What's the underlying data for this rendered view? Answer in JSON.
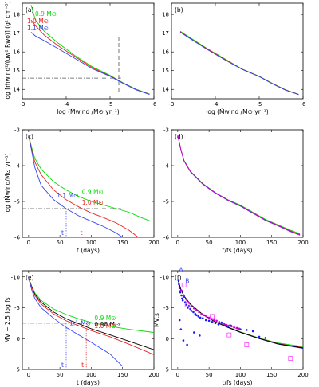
{
  "chart_data": [
    {
      "type": "line",
      "panel_label": "(a)",
      "xlabel": "log (Ṁwind /M⊙ yr⁻¹)",
      "ylabel": "log [ṁwind²/(uw² Rwo)] (g² cm⁻³)",
      "xlim": [
        -3,
        -6
      ],
      "ylim": [
        13.5,
        18.6
      ],
      "xticks": [
        -3,
        -4,
        -5,
        -6
      ],
      "yticks": [
        14,
        15,
        16,
        17,
        18
      ],
      "series": [
        {
          "name": "0.9 M⊙",
          "color": "#00dd00",
          "x": [
            -3.2,
            -3.3,
            -3.5,
            -3.8,
            -4.2,
            -4.6,
            -5.0,
            -5.3,
            -5.6,
            -5.9
          ],
          "y": [
            18.5,
            17.7,
            17.1,
            16.5,
            15.8,
            15.2,
            14.75,
            14.35,
            14.0,
            13.75
          ]
        },
        {
          "name": "1.0 M⊙",
          "color": "#ee2222",
          "x": [
            -3.2,
            -3.3,
            -3.5,
            -3.8,
            -4.2,
            -4.6,
            -5.0,
            -5.3,
            -5.6,
            -5.9
          ],
          "y": [
            17.7,
            17.4,
            16.9,
            16.35,
            15.75,
            15.15,
            14.72,
            14.33,
            13.98,
            13.74
          ]
        },
        {
          "name": "1.1 M⊙",
          "color": "#3344ee",
          "x": [
            -3.2,
            -3.3,
            -3.5,
            -3.8,
            -4.2,
            -4.6,
            -5.0,
            -5.3,
            -5.6,
            -5.9
          ],
          "y": [
            17.05,
            16.85,
            16.6,
            16.2,
            15.65,
            15.1,
            14.7,
            14.32,
            13.97,
            13.73
          ]
        }
      ],
      "annotations": {
        "vline_x": -5.2,
        "hline_y": 14.6
      }
    },
    {
      "type": "line",
      "panel_label": "(b)",
      "xlabel": "log (Ṁwind /M⊙ yr⁻¹)",
      "ylabel": "",
      "xlim": [
        -3,
        -6
      ],
      "ylim": [
        13.5,
        18.6
      ],
      "xticks": [
        -3,
        -4,
        -5,
        -6
      ],
      "yticks": [
        14,
        15,
        16,
        17,
        18
      ],
      "series": [
        {
          "color": "#00dd00",
          "x": [
            -3.2,
            -3.5,
            -3.8,
            -4.2,
            -4.6,
            -5.0,
            -5.3,
            -5.6,
            -5.9
          ],
          "y": [
            17.1,
            16.65,
            16.2,
            15.65,
            15.1,
            14.7,
            14.32,
            13.98,
            13.74
          ]
        },
        {
          "color": "#ee2222",
          "x": [
            -3.2,
            -3.5,
            -3.8,
            -4.2,
            -4.6,
            -5.0,
            -5.3,
            -5.6,
            -5.9
          ],
          "y": [
            17.08,
            16.62,
            16.18,
            15.63,
            15.09,
            14.69,
            14.31,
            13.97,
            13.73
          ]
        },
        {
          "color": "#3344ee",
          "x": [
            -3.2,
            -3.5,
            -3.8,
            -4.2,
            -4.6,
            -5.0,
            -5.3,
            -5.6,
            -5.9
          ],
          "y": [
            17.05,
            16.6,
            16.15,
            15.6,
            15.08,
            14.68,
            14.3,
            13.96,
            13.72
          ]
        }
      ]
    },
    {
      "type": "line",
      "panel_label": "(c)",
      "xlabel": "t (days)",
      "ylabel": "log (Ṁwind/M⊙ yr⁻¹)",
      "xlim": [
        -10,
        200
      ],
      "ylim": [
        -6,
        -3
      ],
      "xticks": [
        0,
        50,
        100,
        150,
        200
      ],
      "yticks": [
        -3,
        -4,
        -5,
        -6
      ],
      "series": [
        {
          "name": "0.9 M⊙",
          "color": "#00dd00",
          "x": [
            0,
            5,
            10,
            20,
            40,
            60,
            80,
            100,
            120,
            140,
            160,
            180,
            195
          ],
          "y": [
            -3.15,
            -3.5,
            -3.8,
            -4.1,
            -4.45,
            -4.68,
            -4.86,
            -5.0,
            -5.1,
            -5.2,
            -5.3,
            -5.45,
            -5.55
          ]
        },
        {
          "name": "1.0 M⊙",
          "color": "#ee2222",
          "x": [
            0,
            5,
            10,
            20,
            40,
            60,
            80,
            100,
            120,
            140,
            160,
            175
          ],
          "y": [
            -3.15,
            -3.55,
            -3.9,
            -4.25,
            -4.68,
            -4.95,
            -5.15,
            -5.32,
            -5.45,
            -5.6,
            -5.8,
            -6.0
          ]
        },
        {
          "name": "1.1 M⊙",
          "color": "#3344ee",
          "x": [
            0,
            5,
            10,
            20,
            40,
            60,
            80,
            100,
            120,
            140,
            150
          ],
          "y": [
            -3.15,
            -3.6,
            -4.05,
            -4.55,
            -4.95,
            -5.2,
            -5.4,
            -5.55,
            -5.7,
            -5.88,
            -6.0
          ]
        }
      ],
      "annotations": {
        "hline_y": -5.2,
        "t_labels": [
          {
            "text": "t",
            "x": 60
          },
          {
            "text": "t",
            "x": 90
          }
        ]
      }
    },
    {
      "type": "line",
      "panel_label": "(d)",
      "xlabel": "t/fs (days)",
      "ylabel": "",
      "xlim": [
        -10,
        200
      ],
      "ylim": [
        -6,
        -3
      ],
      "xticks": [
        0,
        50,
        100,
        150,
        200
      ],
      "yticks": [
        -3,
        -4,
        -5,
        -6
      ],
      "series": [
        {
          "color": "#00dd00",
          "x": [
            0,
            5,
            10,
            20,
            40,
            60,
            80,
            100,
            120,
            140,
            160,
            180,
            195
          ],
          "y": [
            -3.15,
            -3.55,
            -3.85,
            -4.15,
            -4.5,
            -4.75,
            -4.95,
            -5.1,
            -5.3,
            -5.5,
            -5.65,
            -5.8,
            -5.9
          ]
        },
        {
          "color": "#ee2222",
          "x": [
            0,
            5,
            10,
            20,
            40,
            60,
            80,
            100,
            120,
            140,
            160,
            180,
            195
          ],
          "y": [
            -3.15,
            -3.55,
            -3.86,
            -4.16,
            -4.51,
            -4.76,
            -4.96,
            -5.12,
            -5.32,
            -5.52,
            -5.67,
            -5.82,
            -5.92
          ]
        },
        {
          "color": "#3344ee",
          "x": [
            0,
            5,
            10,
            20,
            40,
            60,
            80,
            100,
            120,
            140,
            160,
            180,
            195
          ],
          "y": [
            -3.15,
            -3.56,
            -3.87,
            -4.17,
            -4.52,
            -4.77,
            -4.97,
            -5.13,
            -5.33,
            -5.53,
            -5.68,
            -5.84,
            -5.94
          ]
        },
        {
          "color": "#cc00cc",
          "x": [
            0,
            5,
            10,
            20,
            40,
            60,
            80,
            100,
            120,
            140,
            160,
            180,
            195
          ],
          "y": [
            -3.15,
            -3.55,
            -3.86,
            -4.16,
            -4.51,
            -4.76,
            -4.96,
            -5.12,
            -5.32,
            -5.52,
            -5.67,
            -5.83,
            -5.93
          ]
        }
      ]
    },
    {
      "type": "line",
      "panel_label": "(e)",
      "xlabel": "t (days)",
      "ylabel": "MV − 2.5 log fs",
      "xlim": [
        -10,
        200
      ],
      "ylim": [
        5,
        -11
      ],
      "xticks": [
        0,
        50,
        100,
        150,
        200
      ],
      "yticks": [
        -10,
        -5,
        0,
        5
      ],
      "series": [
        {
          "name": "0.9 M⊙",
          "color": "#00dd00",
          "x": [
            0,
            5,
            10,
            20,
            40,
            60,
            80,
            100,
            130,
            160,
            200
          ],
          "y": [
            -9.8,
            -8.5,
            -7.4,
            -6.2,
            -4.8,
            -3.9,
            -3.2,
            -2.6,
            -2.0,
            -1.5,
            -1.0
          ]
        },
        {
          "name": "0.98 M⊙",
          "color": "#000000",
          "x": [
            0,
            5,
            10,
            20,
            40,
            60,
            80,
            100,
            130,
            160,
            200
          ],
          "y": [
            -9.8,
            -8.4,
            -7.2,
            -5.9,
            -4.3,
            -3.2,
            -2.4,
            -1.6,
            -0.6,
            0.4,
            1.8
          ]
        },
        {
          "name": "1.0 M⊙",
          "color": "#ee2222",
          "x": [
            0,
            5,
            10,
            20,
            40,
            60,
            80,
            100,
            130,
            160,
            200
          ],
          "y": [
            -9.8,
            -8.3,
            -7.0,
            -5.6,
            -4.0,
            -2.9,
            -2.1,
            -1.3,
            -0.3,
            0.9,
            2.6
          ]
        },
        {
          "name": "1.1 M⊙",
          "color": "#3344ee",
          "x": [
            0,
            5,
            10,
            20,
            40,
            60,
            80,
            100,
            130,
            150
          ],
          "y": [
            -9.8,
            -7.9,
            -6.5,
            -5.0,
            -3.3,
            -1.8,
            -0.6,
            0.6,
            2.5,
            4.5
          ]
        }
      ],
      "annotations": {
        "hline_y": -2.5,
        "t_labels": [
          {
            "text": "t",
            "x": 60
          },
          {
            "text": "t",
            "x": 92
          }
        ]
      }
    },
    {
      "type": "scatter",
      "panel_label": "(f)",
      "xlabel": "t/fs (days)",
      "ylabel": "MV,s",
      "xlim": [
        -10,
        200
      ],
      "ylim": [
        5,
        -11
      ],
      "xticks": [
        0,
        50,
        100,
        150,
        200
      ],
      "yticks": [
        -10,
        -5,
        0,
        5
      ],
      "series": [
        {
          "color": "#00dd00",
          "x": [
            0,
            5,
            10,
            20,
            40,
            60,
            80,
            100,
            130,
            160,
            200
          ],
          "y": [
            -9.6,
            -8.0,
            -6.9,
            -5.6,
            -3.9,
            -2.7,
            -1.9,
            -1.1,
            -0.1,
            0.7,
            1.3
          ]
        },
        {
          "color": "#ee2222",
          "x": [
            0,
            5,
            10,
            20,
            40,
            60,
            80,
            100,
            130,
            160,
            200
          ],
          "y": [
            -9.6,
            -8.0,
            -6.9,
            -5.6,
            -3.9,
            -2.7,
            -1.85,
            -1.05,
            -0.05,
            0.8,
            1.45
          ]
        },
        {
          "color": "#3344ee",
          "x": [
            0,
            5,
            10,
            20,
            40,
            60,
            80,
            100,
            130,
            160,
            200
          ],
          "y": [
            -9.6,
            -8.0,
            -6.9,
            -5.6,
            -3.9,
            -2.7,
            -1.8,
            -1.0,
            0.0,
            0.9,
            1.6
          ]
        },
        {
          "color": "#000000",
          "x": [
            0,
            5,
            10,
            20,
            40,
            60,
            80,
            100,
            130,
            160,
            200
          ],
          "y": [
            -9.6,
            -8.0,
            -6.9,
            -5.6,
            -3.9,
            -2.7,
            -1.82,
            -1.02,
            -0.02,
            0.85,
            1.52
          ]
        }
      ],
      "points": [
        {
          "color": "#1a1aff",
          "x": [
            1,
            2,
            3,
            4,
            5,
            6,
            7,
            8,
            10,
            12,
            14,
            16,
            18,
            20,
            22,
            25,
            28,
            30,
            33,
            36,
            40,
            45,
            50,
            55,
            60,
            65,
            70,
            75,
            80,
            85,
            90,
            95,
            100,
            110,
            120,
            130,
            140,
            3,
            5,
            9,
            15,
            26,
            35
          ],
          "y": [
            -9.5,
            -8.8,
            -8.2,
            -7.5,
            -7.8,
            -7.0,
            -6.5,
            -6.2,
            -6.8,
            -5.9,
            -5.5,
            -5.0,
            -5.3,
            -4.8,
            -4.5,
            -4.3,
            -4.0,
            -3.8,
            -3.6,
            -3.4,
            -3.3,
            -3.0,
            -2.9,
            -2.7,
            -2.5,
            -2.3,
            -2.6,
            -2.2,
            -2.0,
            -2.1,
            -1.8,
            -1.7,
            -1.5,
            -1.4,
            -1.2,
            -0.3,
            -0.1,
            -3.0,
            -1.5,
            0.3,
            1.0,
            -1.0,
            -0.5
          ]
        },
        {
          "color": "#cc00cc",
          "x": [
            6,
            10,
            14,
            18,
            22,
            26,
            30,
            34,
            38,
            42,
            46,
            50,
            54,
            58,
            62,
            66,
            70,
            74,
            78,
            82,
            86,
            90,
            94,
            98
          ],
          "y": [
            -7.8,
            -7.0,
            -6.3,
            -5.8,
            -5.3,
            -4.9,
            -4.6,
            -4.3,
            -4.0,
            -3.8,
            -3.6,
            -3.4,
            -3.2,
            -3.0,
            -2.9,
            -2.7,
            -2.5,
            -2.4,
            -2.2,
            -2.1,
            -2.0,
            -1.8,
            -1.7,
            -1.6
          ]
        }
      ],
      "open_squares": {
        "color": "#ff44ff",
        "x": [
          10,
          15,
          55,
          82,
          110,
          180
        ],
        "y": [
          -8.7,
          -5.5,
          -3.6,
          -0.6,
          1.0,
          3.2
        ]
      },
      "annotations": {
        "labels": [
          {
            "text": "A",
            "x": 2,
            "y": -10.8
          },
          {
            "text": "B",
            "x": 12,
            "y": -9.0
          }
        ]
      }
    }
  ]
}
